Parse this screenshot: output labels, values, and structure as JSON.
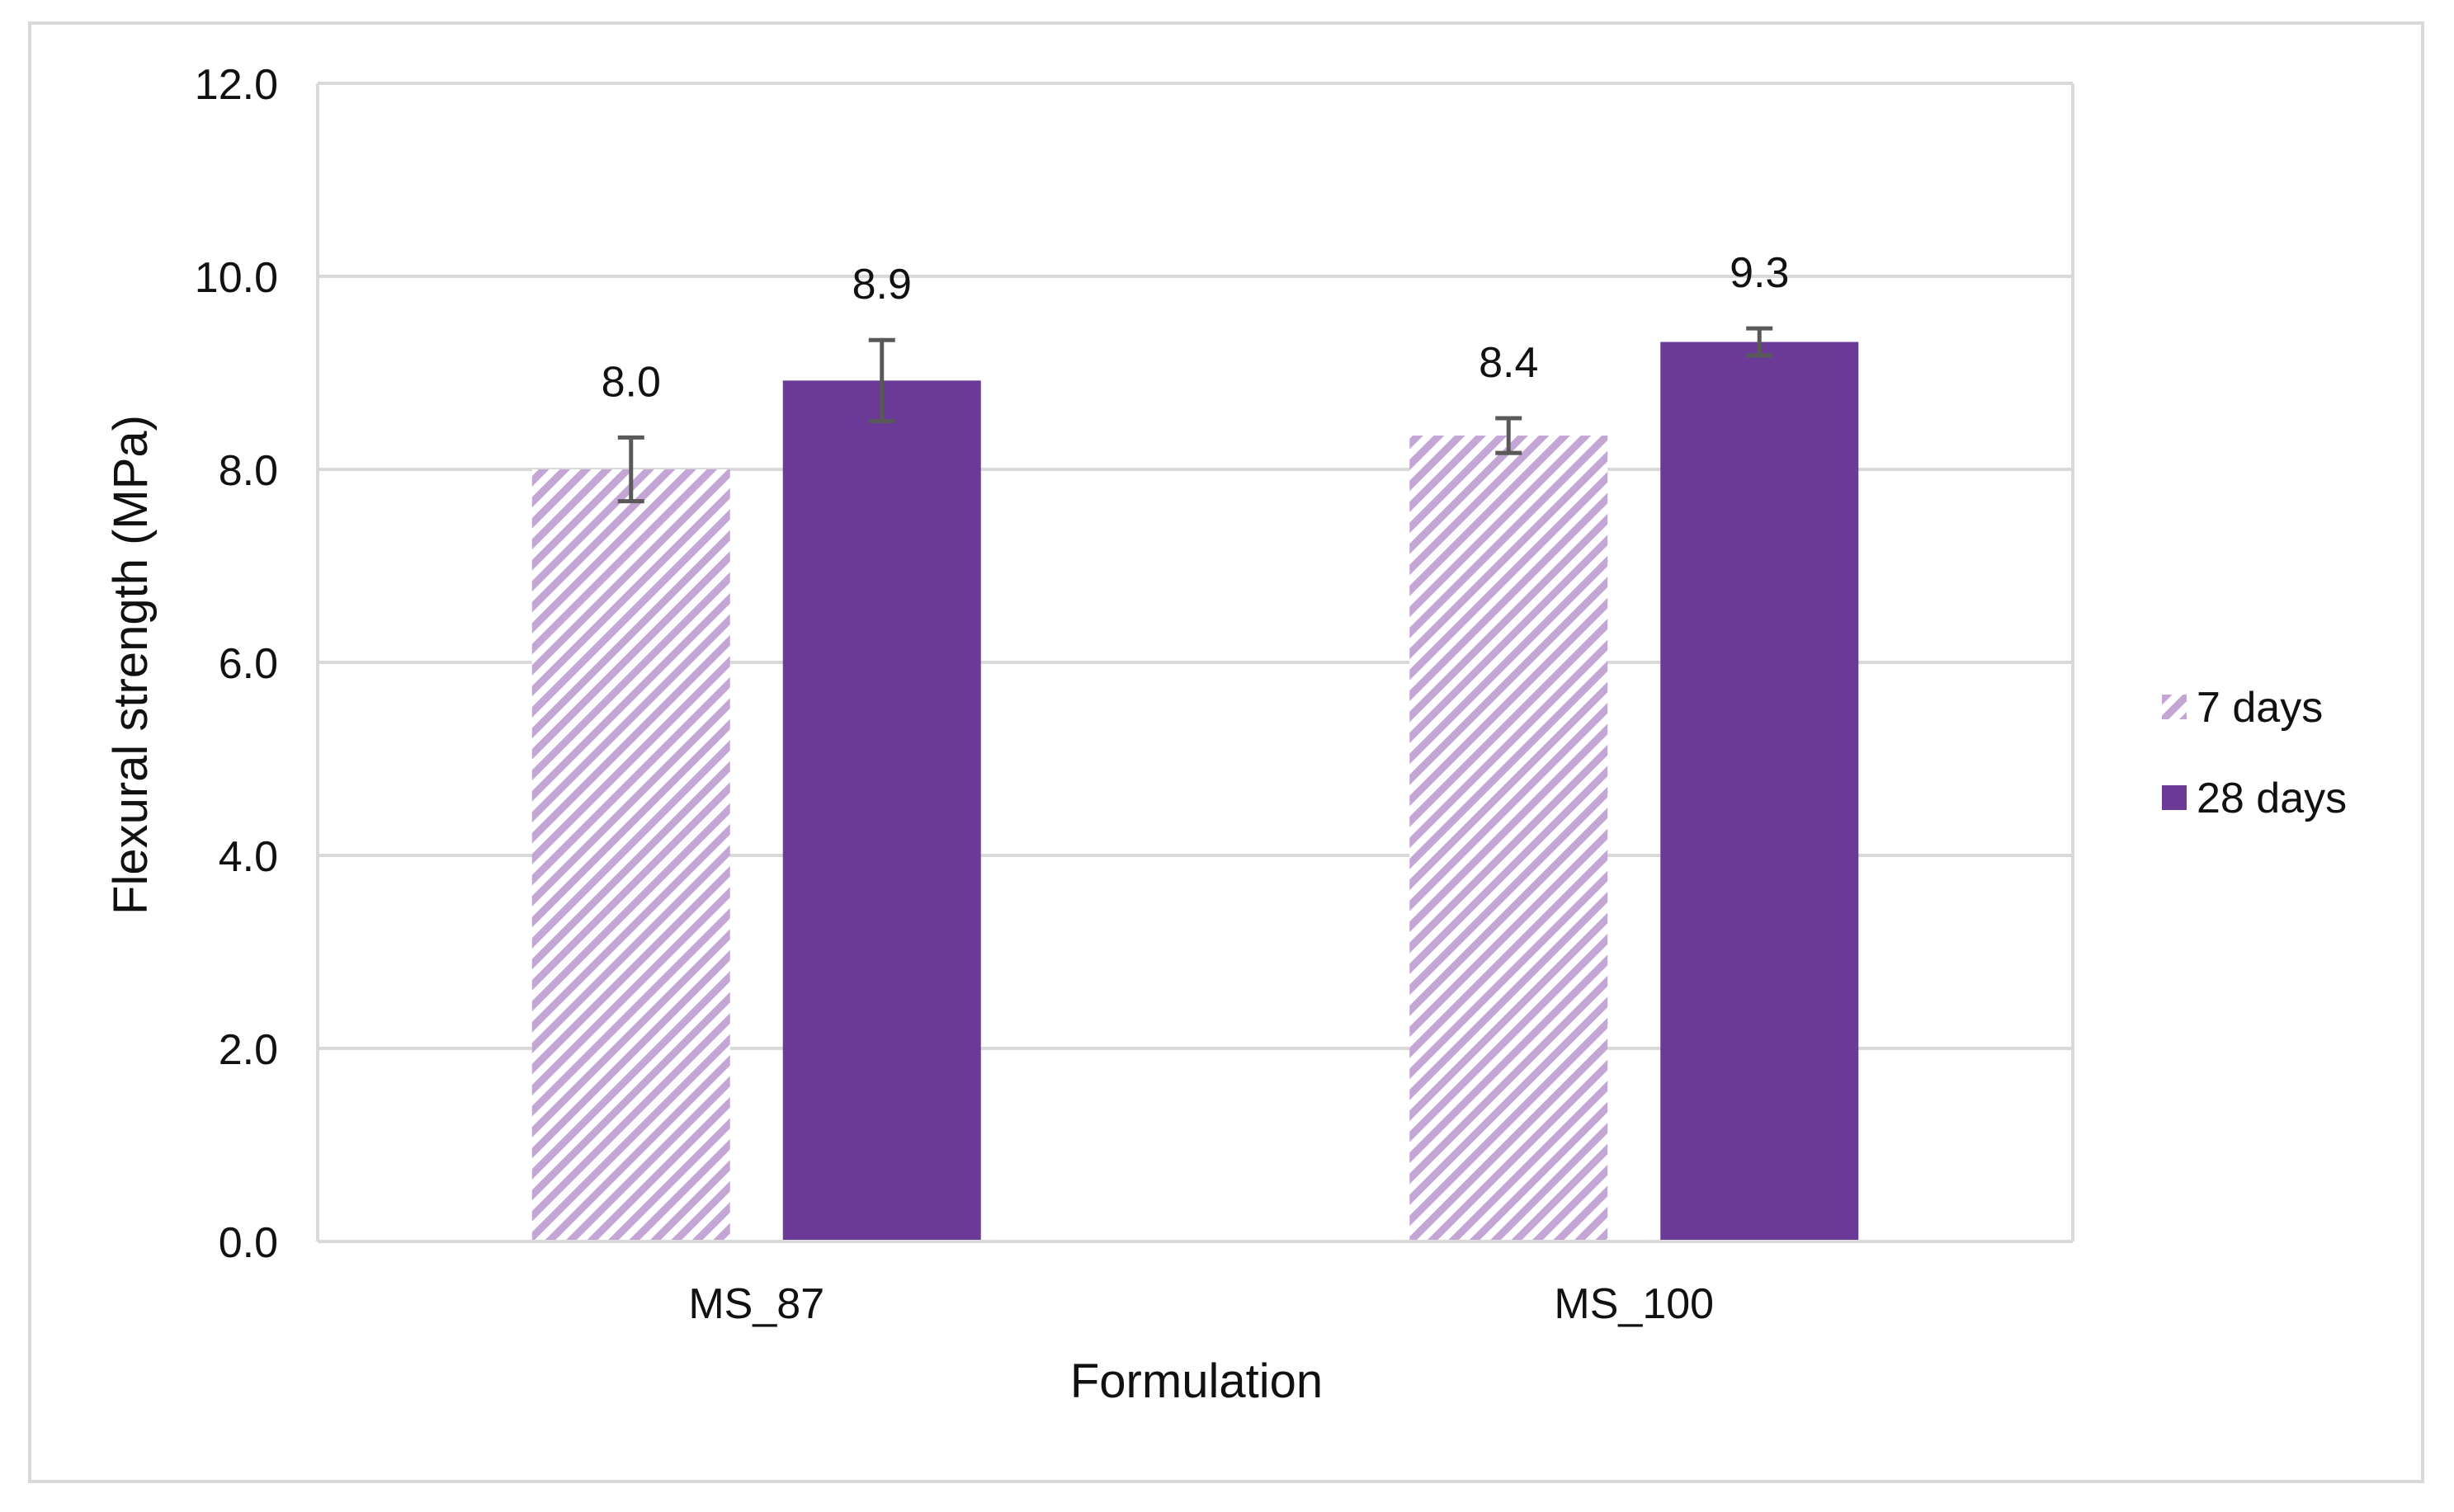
{
  "chart_data": {
    "type": "bar",
    "title": "",
    "xlabel": "Formulation",
    "ylabel": "Flexural strength (MPa)",
    "ylim": [
      0,
      12
    ],
    "yticks": [
      "0.0",
      "2.0",
      "4.0",
      "6.0",
      "8.0",
      "10.0",
      "12.0"
    ],
    "ytick_values": [
      0,
      2,
      4,
      6,
      8,
      10,
      12
    ],
    "categories": [
      "MS_87",
      "MS_100"
    ],
    "series": [
      {
        "name": "7 days",
        "values": [
          8.0,
          8.35
        ],
        "labels": [
          "8.0",
          "8.4"
        ],
        "error": [
          0.33,
          0.18
        ],
        "color": "#c3a5d6",
        "pattern": "diagonal-stripes"
      },
      {
        "name": "28 days",
        "values": [
          8.92,
          9.32
        ],
        "labels": [
          "8.9",
          "9.3"
        ],
        "error": [
          0.42,
          0.14
        ],
        "color": "#6b3a96",
        "pattern": "solid"
      }
    ],
    "grid": true,
    "legend": "right",
    "colors": {
      "grid": "#d9d9d9",
      "error_bar": "#595959"
    }
  }
}
